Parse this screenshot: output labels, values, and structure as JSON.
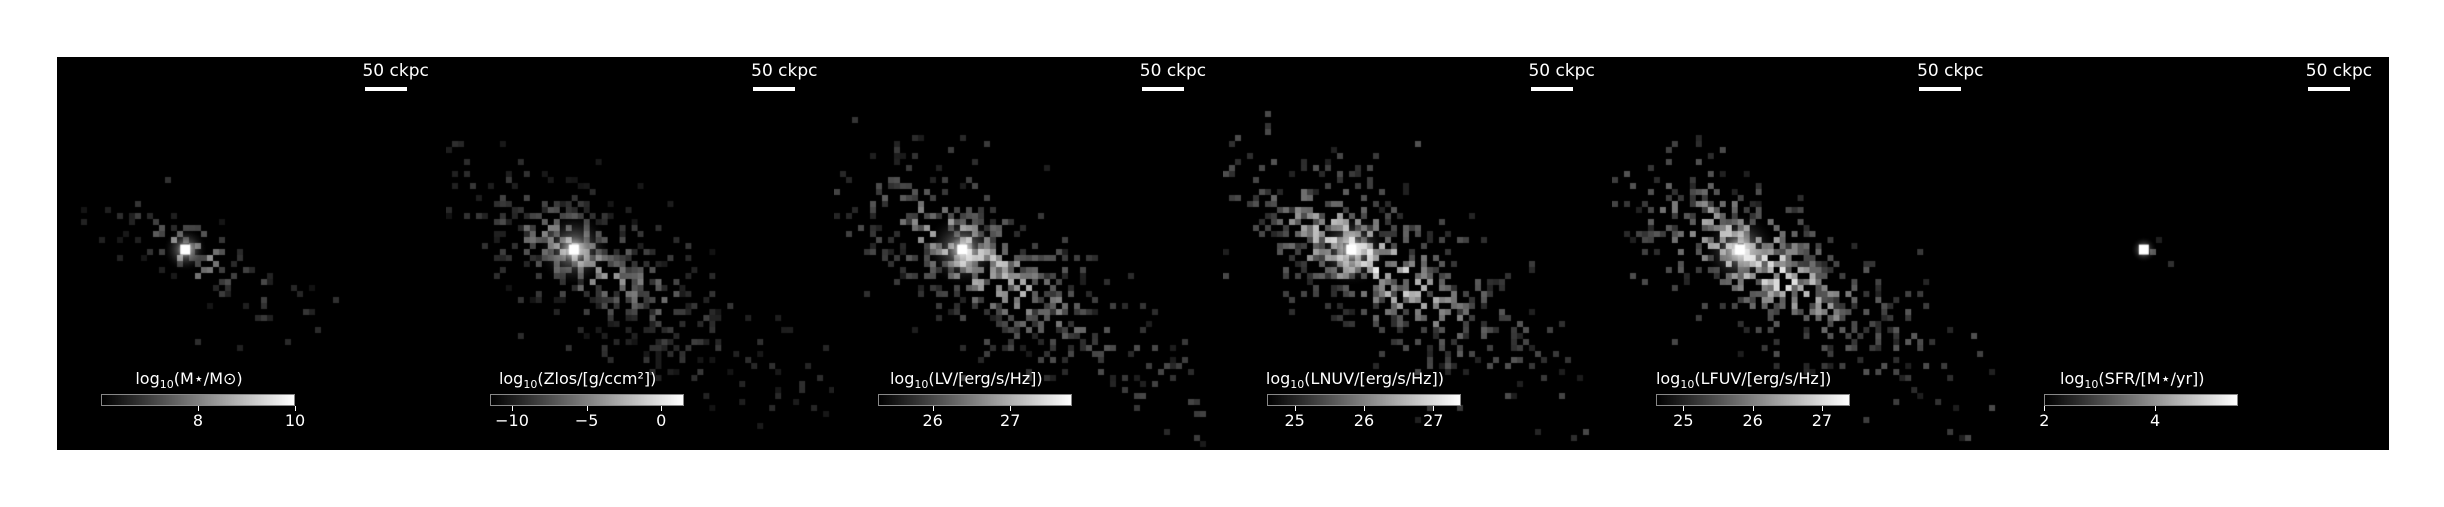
{
  "figure": {
    "panels": [
      {
        "id": "stellar-mass",
        "scale_label": "50 ckpc",
        "cb_prefix": "log",
        "cb_sub": "10",
        "cb_rest": "(M⋆/M⊙)",
        "cb_range": [
          6.0,
          10.0
        ],
        "ticks": [
          {
            "value": 8,
            "label": "8"
          },
          {
            "value": 10,
            "label": "10"
          }
        ]
      },
      {
        "id": "metallicity",
        "scale_label": "50 ckpc",
        "cb_prefix": "log",
        "cb_sub": "10",
        "cb_rest": "(Zlos/[g/ccm²])",
        "cb_range": [
          -11.5,
          1.5
        ],
        "ticks": [
          {
            "value": -10,
            "label": "−10"
          },
          {
            "value": -5,
            "label": "−5"
          },
          {
            "value": 0,
            "label": "0"
          }
        ]
      },
      {
        "id": "v-band",
        "scale_label": "50 ckpc",
        "cb_prefix": "log",
        "cb_sub": "10",
        "cb_rest": "(LV/[erg/s/Hz])",
        "cb_range": [
          25.3,
          27.8
        ],
        "ticks": [
          {
            "value": 26,
            "label": "26"
          },
          {
            "value": 27,
            "label": "27"
          }
        ]
      },
      {
        "id": "nuv",
        "scale_label": "50 ckpc",
        "cb_prefix": "log",
        "cb_sub": "10",
        "cb_rest": "(LNUV/[erg/s/Hz])",
        "cb_range": [
          24.6,
          27.4
        ],
        "ticks": [
          {
            "value": 25,
            "label": "25"
          },
          {
            "value": 26,
            "label": "26"
          },
          {
            "value": 27,
            "label": "27"
          }
        ]
      },
      {
        "id": "fuv",
        "scale_label": "50 ckpc",
        "cb_prefix": "log",
        "cb_sub": "10",
        "cb_rest": "(LFUV/[erg/s/Hz])",
        "cb_range": [
          24.6,
          27.4
        ],
        "ticks": [
          {
            "value": 25,
            "label": "25"
          },
          {
            "value": 26,
            "label": "26"
          },
          {
            "value": 27,
            "label": "27"
          }
        ]
      },
      {
        "id": "sfr",
        "scale_label": "50 ckpc",
        "cb_prefix": "log",
        "cb_sub": "10",
        "cb_rest": "(SFR/[M⋆/yr])",
        "cb_range": [
          2.0,
          5.5
        ],
        "ticks": [
          {
            "value": 2,
            "label": "2"
          },
          {
            "value": 4,
            "label": "4"
          }
        ]
      }
    ]
  }
}
